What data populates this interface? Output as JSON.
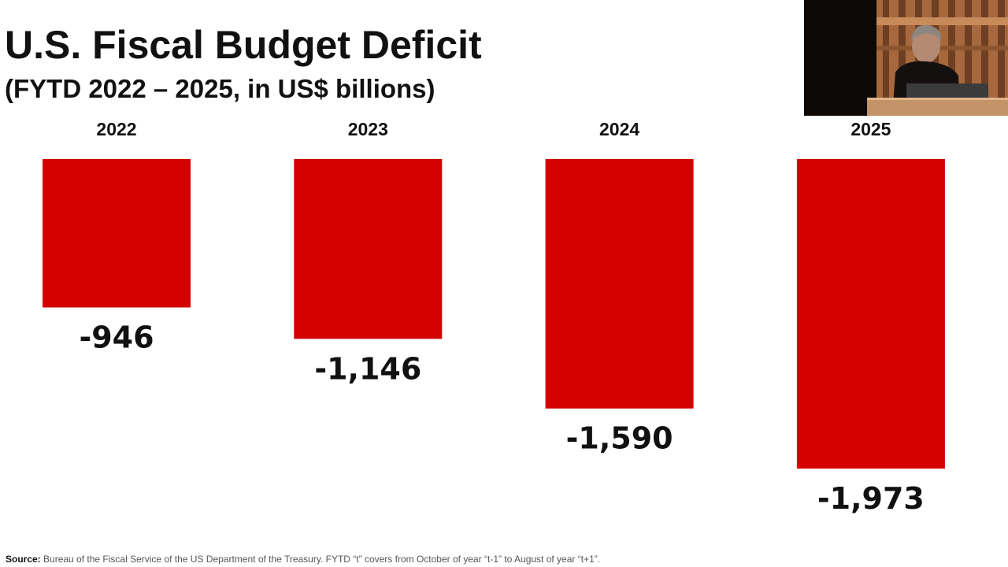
{
  "slide": {
    "title": "U.S. Fiscal Budget Deficit",
    "subtitle": "(FYTD 2022 – 2025, in US$ billions)",
    "source_label": "Source:",
    "source_text": " Bureau of the Fiscal Service of the US Department of the Treasury. FYTD “t” covers from October of year “t-1” to August of year “t+1”."
  },
  "chart_data": {
    "type": "bar",
    "categories": [
      "2022",
      "2023",
      "2024",
      "2025"
    ],
    "values": [
      -946,
      -1146,
      -1590,
      -1973
    ],
    "value_labels": [
      "-946",
      "-1,146",
      "-1,590",
      "-1,973"
    ],
    "title": "U.S. Fiscal Budget Deficit",
    "subtitle": "(FYTD 2022 – 2025, in US$ billions)",
    "xlabel": "",
    "ylabel": "",
    "grid": false,
    "orientation": "vertical, bars hanging down from zero"
  },
  "colors": {
    "bar": "#d40000",
    "text": "#111111",
    "background": "#ffffff"
  },
  "video_inset": {
    "icon": "speaker-video-icon"
  }
}
